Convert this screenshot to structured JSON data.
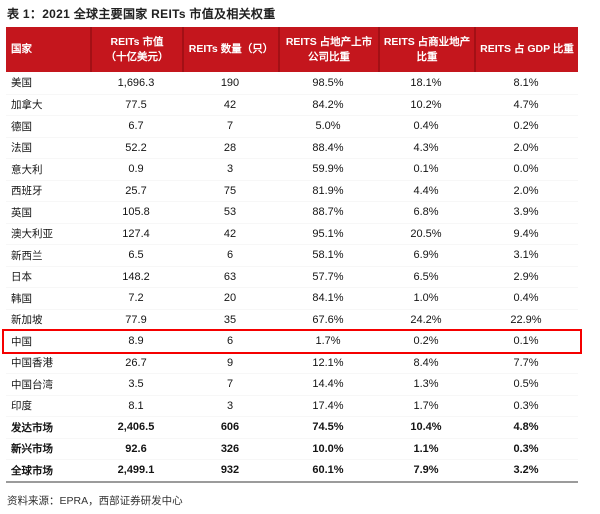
{
  "title": "表 1：2021 全球主要国家 REITs 市值及相关权重",
  "source": "资料来源：EPRA，西部证券研发中心",
  "colors": {
    "header_bg": "#C4161D",
    "header_separator": "#A31015",
    "header_text": "#FFFFFF",
    "highlight_border": "#F50000",
    "bottom_rule": "#9B9B9B"
  },
  "table": {
    "header": {
      "cells": [
        {
          "l1": "国家",
          "l2": ""
        },
        {
          "l1": "REITs 市值",
          "l2": "（十亿美元）"
        },
        {
          "l1": "REITs 数量（只）",
          "l2": ""
        },
        {
          "l1": "REITS 占地产上市",
          "l2": "公司比重"
        },
        {
          "l1": "REITS 占商业地产",
          "l2": "比重"
        },
        {
          "l1": "REITS 占 GDP 比重",
          "l2": ""
        }
      ]
    },
    "highlighted_row": "中国",
    "rows": [
      {
        "c": [
          "美国",
          "1,696.3",
          "190",
          "98.5%",
          "18.1%",
          "8.1%"
        ]
      },
      {
        "c": [
          "加拿大",
          "77.5",
          "42",
          "84.2%",
          "10.2%",
          "4.7%"
        ]
      },
      {
        "c": [
          "德国",
          "6.7",
          "7",
          "5.0%",
          "0.4%",
          "0.2%"
        ]
      },
      {
        "c": [
          "法国",
          "52.2",
          "28",
          "88.4%",
          "4.3%",
          "2.0%"
        ]
      },
      {
        "c": [
          "意大利",
          "0.9",
          "3",
          "59.9%",
          "0.1%",
          "0.0%"
        ]
      },
      {
        "c": [
          "西班牙",
          "25.7",
          "75",
          "81.9%",
          "4.4%",
          "2.0%"
        ]
      },
      {
        "c": [
          "英国",
          "105.8",
          "53",
          "88.7%",
          "6.8%",
          "3.9%"
        ]
      },
      {
        "c": [
          "澳大利亚",
          "127.4",
          "42",
          "95.1%",
          "20.5%",
          "9.4%"
        ]
      },
      {
        "c": [
          "新西兰",
          "6.5",
          "6",
          "58.1%",
          "6.9%",
          "3.1%"
        ]
      },
      {
        "c": [
          "日本",
          "148.2",
          "63",
          "57.7%",
          "6.5%",
          "2.9%"
        ]
      },
      {
        "c": [
          "韩国",
          "7.2",
          "20",
          "84.1%",
          "1.0%",
          "0.4%"
        ]
      },
      {
        "c": [
          "新加坡",
          "77.9",
          "35",
          "67.6%",
          "24.2%",
          "22.9%"
        ]
      },
      {
        "c": [
          "中国",
          "8.9",
          "6",
          "1.7%",
          "0.2%",
          "0.1%"
        ]
      },
      {
        "c": [
          "中国香港",
          "26.7",
          "9",
          "12.1%",
          "8.4%",
          "7.7%"
        ]
      },
      {
        "c": [
          "中国台湾",
          "3.5",
          "7",
          "14.4%",
          "1.3%",
          "0.5%"
        ]
      },
      {
        "c": [
          "印度",
          "8.1",
          "3",
          "17.4%",
          "1.7%",
          "0.3%"
        ]
      },
      {
        "c": [
          "发达市场",
          "2,406.5",
          "606",
          "74.5%",
          "10.4%",
          "4.8%"
        ]
      },
      {
        "c": [
          "新兴市场",
          "92.6",
          "326",
          "10.0%",
          "1.1%",
          "0.3%"
        ]
      },
      {
        "c": [
          "全球市场",
          "2,499.1",
          "932",
          "60.1%",
          "7.9%",
          "3.2%"
        ]
      }
    ]
  }
}
